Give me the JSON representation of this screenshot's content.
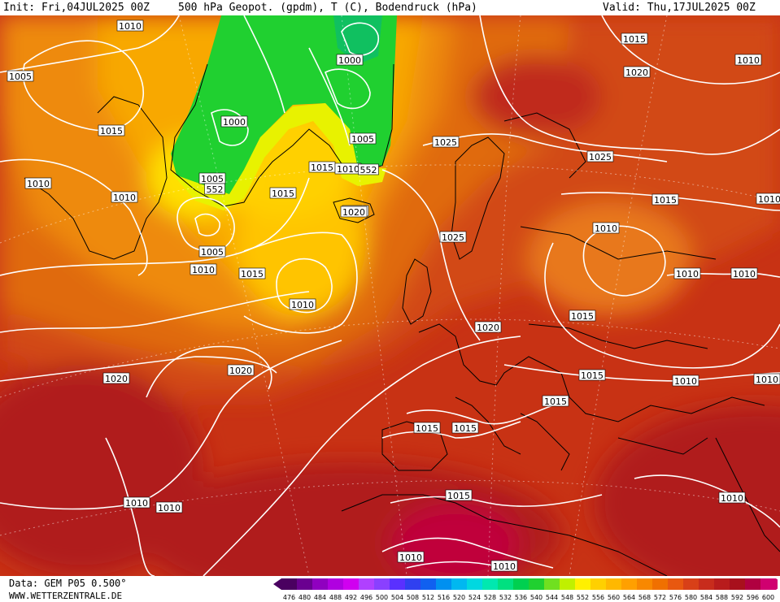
{
  "header": {
    "init": "Init: Fri,04JUL2025 00Z",
    "title": "500 hPa Geopot. (gpdm), T (C), Bodendruck (hPa)",
    "valid": "Valid: Thu,17JUL2025 00Z"
  },
  "footer": {
    "data_source": "Data: GEM P05 0.500°",
    "website": "WWW.WETTERZENTRALE.DE"
  },
  "map": {
    "contour_labels": [
      "1010",
      "1005",
      "1015",
      "1010",
      "1010",
      "1005",
      "1010",
      "1015",
      "1020",
      "1015",
      "1020",
      "1000",
      "1000",
      "1005",
      "1015",
      "1010",
      "552",
      "1005",
      "552",
      "1015",
      "1020",
      "1015",
      "1010",
      "1025",
      "1025",
      "1020",
      "1015",
      "1015",
      "1010",
      "1025",
      "1020",
      "1020",
      "1015",
      "1010",
      "1010",
      "1015",
      "1015",
      "1010",
      "1015",
      "1010",
      "1010",
      "1010",
      "1010",
      "1010",
      "1010",
      "1010",
      "1010"
    ],
    "colors": {
      "magenta": "#c8005a",
      "darkred": "#b01a1a",
      "red": "#c83214",
      "redorange": "#d24a14",
      "orange": "#e06a10",
      "lightorange": "#ee8a0a",
      "amber": "#f8a800",
      "yellow": "#ffd000",
      "brightyellow": "#ffee00",
      "lime": "#d8f000",
      "green": "#20d030",
      "darkgreen": "#10a838",
      "isobar": "#ffffff",
      "coast": "#000000"
    }
  },
  "colorbar": {
    "ticks": [
      "476",
      "480",
      "484",
      "488",
      "492",
      "496",
      "500",
      "504",
      "508",
      "512",
      "516",
      "520",
      "524",
      "528",
      "532",
      "536",
      "540",
      "544",
      "548",
      "552",
      "556",
      "560",
      "564",
      "568",
      "572",
      "576",
      "580",
      "584",
      "588",
      "592",
      "596",
      "600"
    ],
    "colors": [
      "#4a0060",
      "#6a0090",
      "#9000c0",
      "#b000e0",
      "#d000f0",
      "#b040ff",
      "#8a40ff",
      "#5a30ff",
      "#3040f0",
      "#1060f0",
      "#0090f0",
      "#00b8f0",
      "#00d8e0",
      "#00e8b0",
      "#00e080",
      "#00d050",
      "#20d030",
      "#70e020",
      "#c0f000",
      "#fff000",
      "#ffd000",
      "#ffb800",
      "#ffa000",
      "#f88800",
      "#f07000",
      "#e85810",
      "#d84018",
      "#c82c1c",
      "#b81c1c",
      "#a8101c",
      "#b00040",
      "#d00070"
    ]
  }
}
